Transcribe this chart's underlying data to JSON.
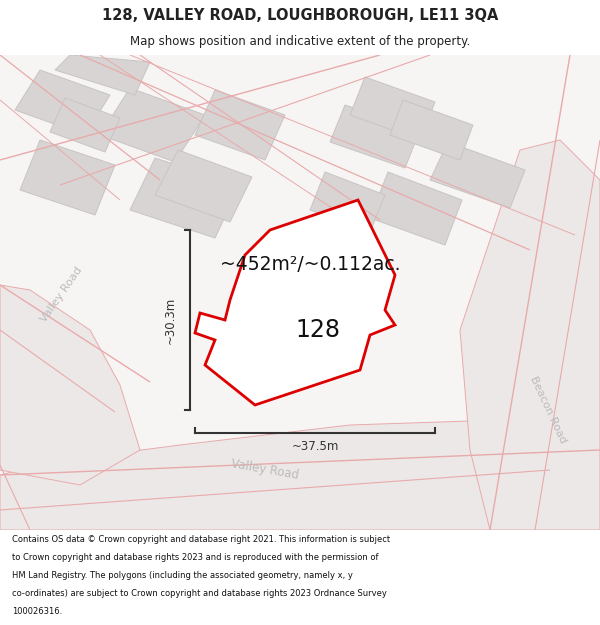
{
  "title": "128, VALLEY ROAD, LOUGHBOROUGH, LE11 3QA",
  "subtitle": "Map shows position and indicative extent of the property.",
  "footer": "Contains OS data © Crown copyright and database right 2021. This information is subject to Crown copyright and database rights 2023 and is reproduced with the permission of HM Land Registry. The polygons (including the associated geometry, namely x, y co-ordinates) are subject to Crown copyright and database rights 2023 Ordnance Survey 100026316.",
  "area_label": "~452m²/~0.112ac.",
  "number_label": "128",
  "width_label": "~37.5m",
  "height_label": "~30.3m",
  "bg_color": "#f7f4f4",
  "building_fill": "#d8d4d4",
  "building_edge": "#c8c4c4",
  "plot_stroke": "#dd0000",
  "road_line_color": "#e8aaaa",
  "road_fill_color": "#ede8e8",
  "dim_line_color": "#333333",
  "title_color": "#222222",
  "road_label_color": "#bbbbbb",
  "valley_road_label_color": "#aaaaaa"
}
